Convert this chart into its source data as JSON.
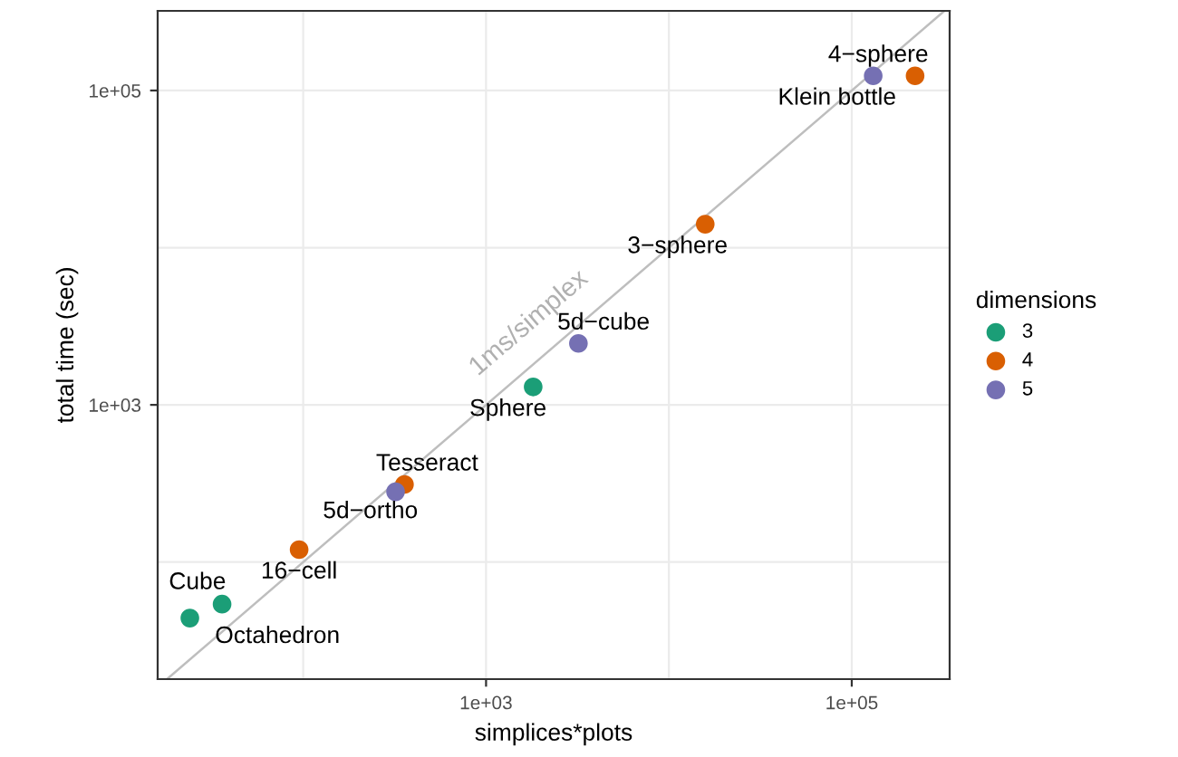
{
  "chart_data": {
    "type": "scatter",
    "xlabel": "simplices*plots",
    "ylabel": "total time (sec)",
    "legend_title": "dimensions",
    "legend": "right",
    "log": "xy",
    "grid": true,
    "marker": "circle",
    "xlim": [
      16,
      343000
    ],
    "ylim": [
      18,
      321000
    ],
    "xticks": [
      {
        "value": 100,
        "label": null
      },
      {
        "value": 1000,
        "label": "1e+03"
      },
      {
        "value": 10000,
        "label": null
      },
      {
        "value": 100000,
        "label": "1e+05"
      }
    ],
    "yticks": [
      {
        "value": 100,
        "label": null
      },
      {
        "value": 1000,
        "label": "1e+03"
      },
      {
        "value": 10000,
        "label": null
      },
      {
        "value": 100000,
        "label": "1e+05"
      }
    ],
    "series": [
      {
        "type": "line",
        "marker": "none",
        "color": "#bebebe",
        "x": [
          18,
          321000
        ],
        "values": [
          18,
          321000
        ]
      },
      {
        "name": "3",
        "color": "#1b9e77",
        "x": [
          24,
          36,
          1810
        ],
        "values": [
          44,
          54,
          1300
        ]
      },
      {
        "name": "4",
        "color": "#d95f02",
        "x": [
          95,
          358,
          15800,
          222000
        ],
        "values": [
          120,
          312,
          14100,
          124000
        ]
      },
      {
        "name": "5",
        "color": "#7570b3",
        "x": [
          320,
          3200,
          131000
        ],
        "values": [
          280,
          2460,
          124000
        ]
      }
    ],
    "annotations": [
      {
        "text": "1ms/simplex",
        "x": 2300,
        "y": 2300
      },
      {
        "text": "Cube",
        "x": 24,
        "y": 44
      },
      {
        "text": "Octahedron",
        "x": 36,
        "y": 54
      },
      {
        "text": "Sphere",
        "x": 1810,
        "y": 1300
      },
      {
        "text": "16−cell",
        "x": 95,
        "y": 120
      },
      {
        "text": "Tesseract",
        "x": 358,
        "y": 312
      },
      {
        "text": "3−sphere",
        "x": 15800,
        "y": 14100
      },
      {
        "text": "Klein bottle",
        "x": 222000,
        "y": 124000
      },
      {
        "text": "5d−ortho",
        "x": 320,
        "y": 280
      },
      {
        "text": "5d−cube",
        "x": 3200,
        "y": 2460
      },
      {
        "text": "4−sphere",
        "x": 131000,
        "y": 124000
      }
    ]
  }
}
